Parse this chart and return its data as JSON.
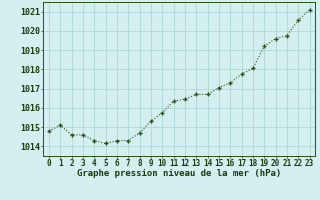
{
  "x": [
    0,
    1,
    2,
    3,
    4,
    5,
    6,
    7,
    8,
    9,
    10,
    11,
    12,
    13,
    14,
    15,
    16,
    17,
    18,
    19,
    20,
    21,
    22,
    23
  ],
  "y": [
    1014.8,
    1015.1,
    1014.6,
    1014.6,
    1014.3,
    1014.15,
    1014.3,
    1014.3,
    1014.7,
    1015.3,
    1015.75,
    1016.35,
    1016.45,
    1016.7,
    1016.7,
    1017.05,
    1017.3,
    1017.75,
    1018.05,
    1019.2,
    1019.6,
    1019.75,
    1020.55,
    1021.1
  ],
  "xlabel": "Graphe pression niveau de la mer (hPa)",
  "ylim": [
    1013.5,
    1021.5
  ],
  "xlim": [
    -0.5,
    23.5
  ],
  "yticks": [
    1014,
    1015,
    1016,
    1017,
    1018,
    1019,
    1020,
    1021
  ],
  "xtick_labels": [
    "0",
    "1",
    "2",
    "3",
    "4",
    "5",
    "6",
    "7",
    "8",
    "9",
    "10",
    "11",
    "12",
    "13",
    "14",
    "15",
    "16",
    "17",
    "18",
    "19",
    "20",
    "21",
    "22",
    "23"
  ],
  "line_color": "#2a5016",
  "marker_color": "#2a5016",
  "bg_color": "#d4efef",
  "grid_color": "#afd4d4",
  "border_color": "#2a5016",
  "xlabel_color": "#1a3a0a",
  "tick_label_color": "#1a3a0a",
  "xlabel_fontsize": 6.5,
  "tick_fontsize": 5.5,
  "ytick_fontsize": 6.0
}
